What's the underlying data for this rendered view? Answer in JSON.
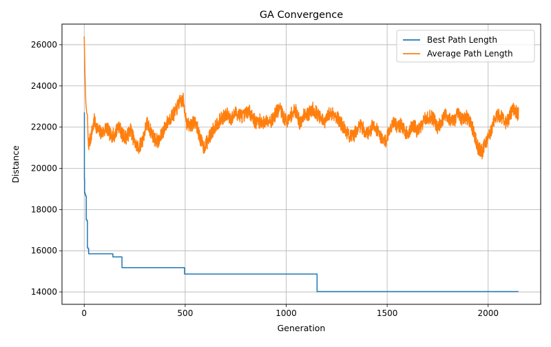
{
  "chart_data": {
    "type": "line",
    "title": "GA Convergence",
    "xlabel": "Generation",
    "ylabel": "Distance",
    "xlim": [
      -110,
      2260
    ],
    "ylim": [
      13400,
      27000
    ],
    "xticks": [
      0,
      500,
      1000,
      1500,
      2000
    ],
    "yticks": [
      14000,
      16000,
      18000,
      20000,
      22000,
      24000,
      26000
    ],
    "grid": true,
    "legend_position": "top-right",
    "series": [
      {
        "name": "Best Path Length",
        "color": "#1f77b4",
        "type": "step",
        "points": [
          [
            0,
            22700
          ],
          [
            1,
            19500
          ],
          [
            2,
            18800
          ],
          [
            5,
            18700
          ],
          [
            8,
            18650
          ],
          [
            10,
            17500
          ],
          [
            14,
            17450
          ],
          [
            16,
            16150
          ],
          [
            19,
            16100
          ],
          [
            22,
            15850
          ],
          [
            140,
            15850
          ],
          [
            142,
            15700
          ],
          [
            185,
            15700
          ],
          [
            187,
            15180
          ],
          [
            495,
            15180
          ],
          [
            497,
            14870
          ],
          [
            1150,
            14870
          ],
          [
            1153,
            14020
          ],
          [
            2150,
            14020
          ]
        ]
      },
      {
        "name": "Average Path Length",
        "color": "#ff7f0e",
        "type": "noisy",
        "seed": 7,
        "noise": 350,
        "points": [
          [
            0,
            26400
          ],
          [
            4,
            24500
          ],
          [
            8,
            23200
          ],
          [
            12,
            22700
          ],
          [
            16,
            22600
          ],
          [
            20,
            21100
          ],
          [
            30,
            21400
          ],
          [
            50,
            22300
          ],
          [
            70,
            21800
          ],
          [
            90,
            21700
          ],
          [
            110,
            22000
          ],
          [
            130,
            21600
          ],
          [
            150,
            21600
          ],
          [
            170,
            22100
          ],
          [
            190,
            21600
          ],
          [
            210,
            21500
          ],
          [
            230,
            21900
          ],
          [
            250,
            21200
          ],
          [
            270,
            21000
          ],
          [
            290,
            21400
          ],
          [
            310,
            22200
          ],
          [
            330,
            21800
          ],
          [
            350,
            21400
          ],
          [
            370,
            21300
          ],
          [
            390,
            21800
          ],
          [
            410,
            22200
          ],
          [
            430,
            22500
          ],
          [
            450,
            22700
          ],
          [
            470,
            23200
          ],
          [
            490,
            23300
          ],
          [
            510,
            22100
          ],
          [
            530,
            22100
          ],
          [
            550,
            22300
          ],
          [
            570,
            21600
          ],
          [
            590,
            21000
          ],
          [
            610,
            21300
          ],
          [
            630,
            21700
          ],
          [
            650,
            22100
          ],
          [
            670,
            22300
          ],
          [
            690,
            22500
          ],
          [
            710,
            22600
          ],
          [
            730,
            22400
          ],
          [
            750,
            22700
          ],
          [
            770,
            22600
          ],
          [
            790,
            22500
          ],
          [
            810,
            22800
          ],
          [
            830,
            22600
          ],
          [
            850,
            22200
          ],
          [
            870,
            22300
          ],
          [
            890,
            22200
          ],
          [
            910,
            22400
          ],
          [
            930,
            22300
          ],
          [
            950,
            22700
          ],
          [
            970,
            22900
          ],
          [
            990,
            22400
          ],
          [
            1010,
            22300
          ],
          [
            1030,
            22700
          ],
          [
            1050,
            22800
          ],
          [
            1070,
            22100
          ],
          [
            1090,
            22700
          ],
          [
            1110,
            22600
          ],
          [
            1130,
            22900
          ],
          [
            1150,
            22700
          ],
          [
            1170,
            22400
          ],
          [
            1190,
            22200
          ],
          [
            1210,
            22600
          ],
          [
            1230,
            22700
          ],
          [
            1250,
            22500
          ],
          [
            1270,
            22200
          ],
          [
            1290,
            21900
          ],
          [
            1310,
            21600
          ],
          [
            1330,
            21500
          ],
          [
            1350,
            21900
          ],
          [
            1370,
            22100
          ],
          [
            1390,
            21800
          ],
          [
            1410,
            21700
          ],
          [
            1430,
            22100
          ],
          [
            1450,
            21900
          ],
          [
            1470,
            21500
          ],
          [
            1490,
            21300
          ],
          [
            1510,
            21800
          ],
          [
            1530,
            22300
          ],
          [
            1550,
            22000
          ],
          [
            1570,
            22100
          ],
          [
            1590,
            21700
          ],
          [
            1610,
            21800
          ],
          [
            1630,
            22100
          ],
          [
            1650,
            21800
          ],
          [
            1670,
            22100
          ],
          [
            1690,
            22400
          ],
          [
            1710,
            22500
          ],
          [
            1730,
            22400
          ],
          [
            1750,
            22000
          ],
          [
            1770,
            22300
          ],
          [
            1790,
            22600
          ],
          [
            1810,
            22400
          ],
          [
            1830,
            22300
          ],
          [
            1850,
            22600
          ],
          [
            1870,
            22400
          ],
          [
            1890,
            22500
          ],
          [
            1910,
            22300
          ],
          [
            1930,
            21700
          ],
          [
            1950,
            21000
          ],
          [
            1970,
            20800
          ],
          [
            1990,
            21300
          ],
          [
            2010,
            21700
          ],
          [
            2030,
            22300
          ],
          [
            2050,
            22600
          ],
          [
            2070,
            22500
          ],
          [
            2090,
            22200
          ],
          [
            2110,
            22600
          ],
          [
            2130,
            22900
          ],
          [
            2150,
            22600
          ]
        ]
      }
    ]
  }
}
